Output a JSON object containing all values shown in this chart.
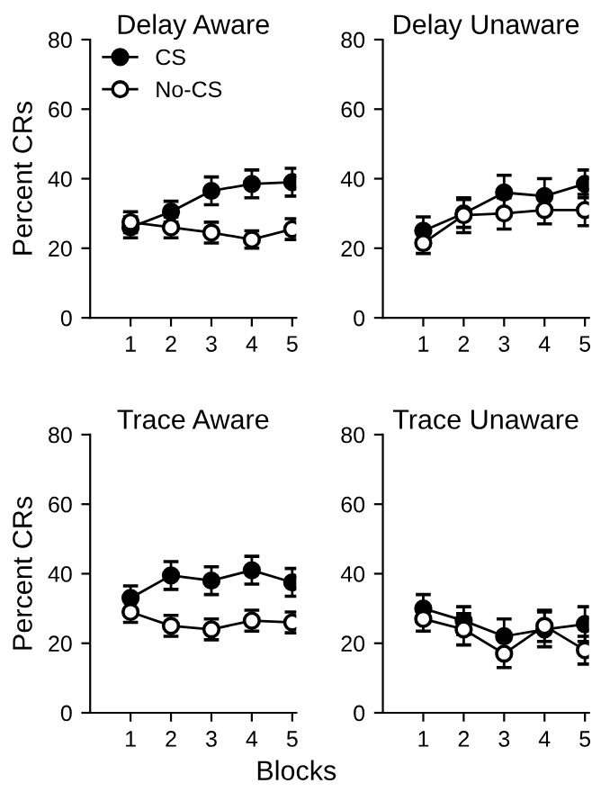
{
  "chart_data": [
    {
      "type": "line",
      "title": "Delay Aware",
      "ylabel": "Percent CRs",
      "x": [
        1,
        2,
        3,
        4,
        5
      ],
      "xlim": [
        0,
        5.1
      ],
      "xticks": [
        1,
        2,
        3,
        4,
        5
      ],
      "ylim": [
        0,
        80
      ],
      "yticks": [
        0,
        20,
        40,
        60,
        80
      ],
      "marker": "circle",
      "legend": "top left",
      "grid": false,
      "series": [
        {
          "name": "CS",
          "color": "#000000",
          "values": [
            26,
            30.5,
            36.5,
            38.5,
            39
          ],
          "errors": [
            3,
            3,
            4,
            4,
            4
          ]
        },
        {
          "name": "No-CS",
          "color": "#ffffff",
          "values": [
            27.5,
            26,
            24.5,
            22.5,
            25.5
          ],
          "errors": [
            3,
            3,
            3,
            2.5,
            3
          ]
        }
      ]
    },
    {
      "type": "line",
      "title": "Delay Unaware",
      "x": [
        1,
        2,
        3,
        4,
        5
      ],
      "xlim": [
        0,
        5.1
      ],
      "xticks": [
        1,
        2,
        3,
        4,
        5
      ],
      "ylim": [
        0,
        80
      ],
      "yticks": [
        0,
        20,
        40,
        60,
        80
      ],
      "marker": "circle",
      "grid": false,
      "series": [
        {
          "color": "#000000",
          "values": [
            25,
            30,
            36,
            35,
            38.5
          ],
          "errors": [
            4,
            4,
            5,
            5,
            4
          ]
        },
        {
          "color": "#ffffff",
          "values": [
            21.5,
            29.5,
            30,
            31,
            31
          ],
          "errors": [
            3,
            5,
            4.5,
            4,
            4.5
          ]
        }
      ]
    },
    {
      "type": "line",
      "title": "Trace Aware",
      "ylabel": "Percent CRs",
      "xlabel": "Blocks",
      "x": [
        1,
        2,
        3,
        4,
        5
      ],
      "xlim": [
        0,
        5.1
      ],
      "xticks": [
        1,
        2,
        3,
        4,
        5
      ],
      "ylim": [
        0,
        80
      ],
      "yticks": [
        0,
        20,
        40,
        60,
        80
      ],
      "marker": "circle",
      "grid": false,
      "series": [
        {
          "color": "#000000",
          "values": [
            33,
            39.5,
            38,
            41,
            37.5
          ],
          "errors": [
            3.5,
            4,
            4,
            4,
            4
          ]
        },
        {
          "color": "#ffffff",
          "values": [
            29,
            25,
            24,
            26.5,
            26
          ],
          "errors": [
            3,
            3,
            3,
            3,
            3
          ]
        }
      ]
    },
    {
      "type": "line",
      "title": "Trace Unaware",
      "x": [
        1,
        2,
        3,
        4,
        5
      ],
      "xlim": [
        0,
        5.1
      ],
      "xticks": [
        1,
        2,
        3,
        4,
        5
      ],
      "ylim": [
        0,
        80
      ],
      "yticks": [
        0,
        20,
        40,
        60,
        80
      ],
      "marker": "circle",
      "grid": false,
      "series": [
        {
          "color": "#000000",
          "values": [
            30,
            26.5,
            22,
            24,
            25.5
          ],
          "errors": [
            4,
            4,
            5,
            5,
            5
          ]
        },
        {
          "color": "#ffffff",
          "values": [
            27,
            24,
            17,
            25,
            18
          ],
          "errors": [
            3.5,
            4.5,
            4,
            4.5,
            4
          ]
        }
      ]
    }
  ]
}
